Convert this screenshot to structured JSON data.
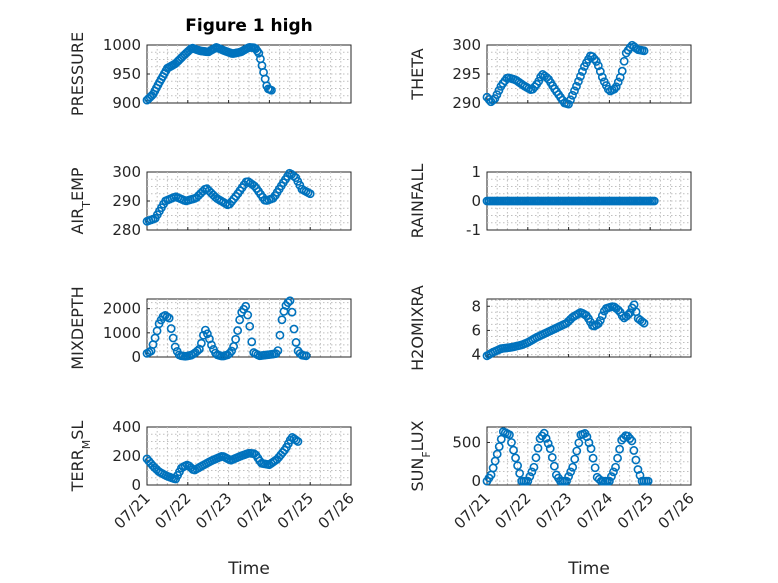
{
  "figure_title": "Figure 1 high",
  "colors": {
    "marker": "#0072BD",
    "axes": "#262626",
    "grid": "#bfbfbf"
  },
  "chart_data": [
    {
      "id": "pressure",
      "type": "scatter",
      "marker": "open-circle",
      "title": "Figure 1 high",
      "ylabel": "PRESSURE",
      "ylabel_parts": [
        [
          "PRESSURE",
          ""
        ]
      ],
      "ylim": [
        900,
        1000
      ],
      "yticks": [
        900,
        950,
        1000
      ],
      "yticklabels": [
        "900",
        "950",
        "1000"
      ],
      "xlim": [
        0,
        5
      ],
      "xticks": [
        0,
        1,
        2,
        3,
        4,
        5
      ],
      "xticklabels": [],
      "xlabel": "",
      "keys": [
        [
          0,
          905
        ],
        [
          0.15,
          915
        ],
        [
          0.3,
          935
        ],
        [
          0.5,
          960
        ],
        [
          0.7,
          968
        ],
        [
          0.9,
          982
        ],
        [
          1.1,
          995
        ],
        [
          1.3,
          990
        ],
        [
          1.5,
          988
        ],
        [
          1.7,
          996
        ],
        [
          1.9,
          990
        ],
        [
          2.1,
          985
        ],
        [
          2.3,
          988
        ],
        [
          2.5,
          996
        ],
        [
          2.65,
          995
        ],
        [
          2.75,
          985
        ],
        [
          2.85,
          955
        ],
        [
          2.95,
          925
        ],
        [
          3.05,
          922
        ]
      ]
    },
    {
      "id": "theta",
      "type": "scatter",
      "marker": "open-circle",
      "ylabel": "THETA",
      "ylabel_parts": [
        [
          "THETA",
          ""
        ]
      ],
      "ylim": [
        290,
        300
      ],
      "yticks": [
        290,
        295,
        300
      ],
      "yticklabels": [
        "290",
        "295",
        "300"
      ],
      "xlim": [
        0,
        5
      ],
      "xticks": [
        0,
        1,
        2,
        3,
        4,
        5
      ],
      "xticklabels": [],
      "xlabel": "",
      "keys": [
        [
          0,
          291
        ],
        [
          0.1,
          290.2
        ],
        [
          0.2,
          290.8
        ],
        [
          0.35,
          293
        ],
        [
          0.5,
          294.4
        ],
        [
          0.7,
          294
        ],
        [
          0.9,
          293
        ],
        [
          1.1,
          292.2
        ],
        [
          1.25,
          293.5
        ],
        [
          1.35,
          295
        ],
        [
          1.5,
          294.2
        ],
        [
          1.65,
          292.5
        ],
        [
          1.8,
          291
        ],
        [
          1.9,
          290
        ],
        [
          2.0,
          289.8
        ],
        [
          2.2,
          293
        ],
        [
          2.4,
          296.5
        ],
        [
          2.55,
          298.3
        ],
        [
          2.7,
          297
        ],
        [
          2.85,
          294
        ],
        [
          3.0,
          292
        ],
        [
          3.15,
          292.5
        ],
        [
          3.3,
          295
        ],
        [
          3.4,
          298.5
        ],
        [
          3.55,
          300
        ],
        [
          3.7,
          299.2
        ],
        [
          3.85,
          299
        ]
      ]
    },
    {
      "id": "air_temp",
      "type": "scatter",
      "marker": "open-circle",
      "ylabel": "AIR_TEMP",
      "ylabel_parts": [
        [
          "AIR",
          ""
        ],
        [
          "T",
          "sub"
        ],
        [
          "EMP",
          ""
        ]
      ],
      "ylim": [
        280,
        300
      ],
      "yticks": [
        280,
        290,
        300
      ],
      "yticklabels": [
        "280",
        "290",
        "300"
      ],
      "xlim": [
        0,
        5
      ],
      "xticks": [
        0,
        1,
        2,
        3,
        4,
        5
      ],
      "xticklabels": [],
      "xlabel": "",
      "keys": [
        [
          0,
          283
        ],
        [
          0.2,
          284
        ],
        [
          0.45,
          290
        ],
        [
          0.7,
          291.5
        ],
        [
          0.95,
          290
        ],
        [
          1.2,
          291
        ],
        [
          1.45,
          294.5
        ],
        [
          1.7,
          291
        ],
        [
          2.0,
          288.5
        ],
        [
          2.2,
          292
        ],
        [
          2.45,
          297
        ],
        [
          2.65,
          295
        ],
        [
          2.9,
          290
        ],
        [
          3.1,
          291
        ],
        [
          3.35,
          296.5
        ],
        [
          3.5,
          299.7
        ],
        [
          3.65,
          298
        ],
        [
          3.8,
          294
        ],
        [
          4.0,
          292.5
        ]
      ]
    },
    {
      "id": "rainfall",
      "type": "scatter",
      "marker": "open-circle",
      "ylabel": "RAINFALL",
      "ylabel_parts": [
        [
          "RAINFALL",
          ""
        ]
      ],
      "ylim": [
        -1,
        1
      ],
      "yticks": [
        -1,
        0,
        1
      ],
      "yticklabels": [
        "-1",
        "0",
        "1"
      ],
      "xlim": [
        0,
        5
      ],
      "xticks": [
        0,
        1,
        2,
        3,
        4,
        5
      ],
      "xticklabels": [],
      "xlabel": "",
      "keys": [
        [
          0,
          0
        ],
        [
          4.1,
          0
        ]
      ]
    },
    {
      "id": "mixdepth",
      "type": "scatter",
      "marker": "open-circle",
      "ylabel": "MIXDEPTH",
      "ylabel_parts": [
        [
          "MIXDEPTH",
          ""
        ]
      ],
      "ylim": [
        0,
        2400
      ],
      "yticks": [
        0,
        1000,
        2000
      ],
      "yticklabels": [
        "0",
        "1000",
        "2000"
      ],
      "xlim": [
        0,
        5
      ],
      "xticks": [
        0,
        1,
        2,
        3,
        4,
        5
      ],
      "xticklabels": [],
      "xlabel": "",
      "keys": [
        [
          0,
          150
        ],
        [
          0.1,
          250
        ],
        [
          0.2,
          800
        ],
        [
          0.3,
          1400
        ],
        [
          0.42,
          1750
        ],
        [
          0.55,
          1600
        ],
        [
          0.6,
          1100
        ],
        [
          0.7,
          350
        ],
        [
          0.8,
          60
        ],
        [
          0.95,
          30
        ],
        [
          1.1,
          80
        ],
        [
          1.2,
          200
        ],
        [
          1.3,
          350
        ],
        [
          1.42,
          1150
        ],
        [
          1.5,
          900
        ],
        [
          1.6,
          400
        ],
        [
          1.7,
          100
        ],
        [
          1.85,
          30
        ],
        [
          2.0,
          100
        ],
        [
          2.1,
          300
        ],
        [
          2.2,
          900
        ],
        [
          2.3,
          1800
        ],
        [
          2.42,
          2100
        ],
        [
          2.5,
          1500
        ],
        [
          2.6,
          200
        ],
        [
          2.75,
          50
        ],
        [
          3.0,
          100
        ],
        [
          3.2,
          150
        ],
        [
          3.32,
          1700
        ],
        [
          3.42,
          2200
        ],
        [
          3.52,
          2350
        ],
        [
          3.6,
          1200
        ],
        [
          3.68,
          300
        ],
        [
          3.78,
          80
        ],
        [
          3.9,
          50
        ]
      ]
    },
    {
      "id": "h2omixra",
      "type": "scatter",
      "marker": "open-circle",
      "ylabel": "H2OMIXRA",
      "ylabel_parts": [
        [
          "H2OMIXRA",
          ""
        ]
      ],
      "ylim": [
        3.8,
        8.6
      ],
      "yticks": [
        4,
        6,
        8
      ],
      "yticklabels": [
        "4",
        "6",
        "8"
      ],
      "xlim": [
        0,
        5
      ],
      "xticks": [
        0,
        1,
        2,
        3,
        4,
        5
      ],
      "xticklabels": [],
      "xlabel": "",
      "keys": [
        [
          0,
          3.9
        ],
        [
          0.15,
          4.2
        ],
        [
          0.35,
          4.5
        ],
        [
          0.6,
          4.6
        ],
        [
          0.85,
          4.8
        ],
        [
          1.0,
          5.0
        ],
        [
          1.2,
          5.4
        ],
        [
          1.45,
          5.8
        ],
        [
          1.7,
          6.2
        ],
        [
          1.95,
          6.6
        ],
        [
          2.1,
          7.1
        ],
        [
          2.3,
          7.5
        ],
        [
          2.45,
          7.2
        ],
        [
          2.6,
          6.3
        ],
        [
          2.75,
          6.6
        ],
        [
          2.9,
          7.8
        ],
        [
          3.1,
          8.0
        ],
        [
          3.25,
          7.6
        ],
        [
          3.35,
          7.0
        ],
        [
          3.5,
          7.4
        ],
        [
          3.6,
          8.2
        ],
        [
          3.7,
          7.0
        ],
        [
          3.85,
          6.6
        ]
      ]
    },
    {
      "id": "terr_msl",
      "type": "scatter",
      "marker": "open-circle",
      "ylabel": "TERR_MSL",
      "ylabel_parts": [
        [
          "TERR",
          ""
        ],
        [
          "M",
          "sub"
        ],
        [
          "SL",
          ""
        ]
      ],
      "ylim": [
        0,
        400
      ],
      "yticks": [
        0,
        200,
        400
      ],
      "yticklabels": [
        "0",
        "200",
        "400"
      ],
      "xlim": [
        0,
        5
      ],
      "xticks": [
        0,
        1,
        2,
        3,
        4,
        5
      ],
      "xticklabels": [
        "07/21",
        "07/22",
        "07/23",
        "07/24",
        "07/25",
        "07/26"
      ],
      "xlabel": "Time",
      "keys": [
        [
          0,
          180
        ],
        [
          0.15,
          130
        ],
        [
          0.3,
          90
        ],
        [
          0.5,
          60
        ],
        [
          0.7,
          40
        ],
        [
          0.85,
          120
        ],
        [
          1.0,
          140
        ],
        [
          1.15,
          100
        ],
        [
          1.4,
          140
        ],
        [
          1.6,
          170
        ],
        [
          1.85,
          200
        ],
        [
          2.05,
          170
        ],
        [
          2.3,
          200
        ],
        [
          2.5,
          220
        ],
        [
          2.65,
          215
        ],
        [
          2.8,
          150
        ],
        [
          3.0,
          140
        ],
        [
          3.2,
          180
        ],
        [
          3.4,
          250
        ],
        [
          3.55,
          330
        ],
        [
          3.7,
          300
        ]
      ]
    },
    {
      "id": "sun_flux",
      "type": "scatter",
      "marker": "open-circle",
      "ylabel": "SUN_FLUX",
      "ylabel_parts": [
        [
          "SUN",
          ""
        ],
        [
          "F",
          "sub"
        ],
        [
          "LUX",
          ""
        ]
      ],
      "ylim": [
        -50,
        700
      ],
      "yticks": [
        0,
        500
      ],
      "yticklabels": [
        "0",
        "500"
      ],
      "xlim": [
        0,
        5
      ],
      "xticks": [
        0,
        1,
        2,
        3,
        4,
        5
      ],
      "xticklabels": [
        "07/21",
        "07/22",
        "07/23",
        "07/24",
        "07/25",
        "07/26"
      ],
      "xlabel": "Time",
      "keys": [
        [
          0,
          0
        ],
        [
          0.1,
          80
        ],
        [
          0.25,
          350
        ],
        [
          0.4,
          640
        ],
        [
          0.55,
          600
        ],
        [
          0.7,
          300
        ],
        [
          0.85,
          0
        ],
        [
          1.0,
          0
        ],
        [
          1.15,
          180
        ],
        [
          1.3,
          550
        ],
        [
          1.4,
          620
        ],
        [
          1.55,
          420
        ],
        [
          1.7,
          80
        ],
        [
          1.8,
          0
        ],
        [
          1.95,
          0
        ],
        [
          2.1,
          180
        ],
        [
          2.3,
          600
        ],
        [
          2.42,
          620
        ],
        [
          2.55,
          420
        ],
        [
          2.7,
          50
        ],
        [
          2.8,
          0
        ],
        [
          3.0,
          0
        ],
        [
          3.15,
          180
        ],
        [
          3.3,
          530
        ],
        [
          3.42,
          600
        ],
        [
          3.55,
          520
        ],
        [
          3.7,
          150
        ],
        [
          3.8,
          0
        ],
        [
          3.95,
          0
        ]
      ]
    }
  ]
}
